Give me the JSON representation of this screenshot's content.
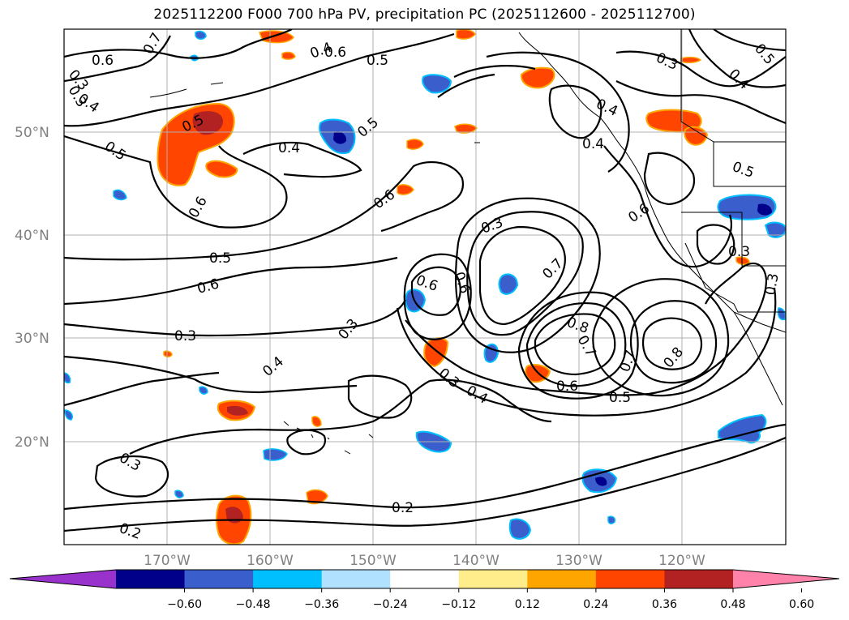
{
  "title": "2025112200 F000 700 hPa PV, precipitation PC (2025112600 - 2025112700)",
  "map": {
    "lon_labels": [
      "170°W",
      "160°W",
      "150°W",
      "140°W",
      "130°W",
      "120°W"
    ],
    "lat_labels": [
      "50°N",
      "40°N",
      "30°N",
      "20°N"
    ],
    "contour_labels": [
      "0.7",
      "0.6",
      "0.3",
      "0.4",
      "0.5",
      "0.6",
      "0.5",
      "0.4",
      "0.5",
      "0.5",
      "0.4",
      "0.3",
      "0.5",
      "0.4",
      "0.6",
      "0.4",
      "0.5",
      "0.6",
      "0.6",
      "0.3",
      "0.6",
      "0.3",
      "0.5",
      "0.6",
      "0.4",
      "0.7",
      "0.3",
      "0.3",
      "0.4",
      "0.6",
      "0.8",
      "0.7",
      "0.7",
      "0.8",
      "0.3",
      "0.4",
      "0.3",
      "0.6",
      "0.5",
      "0.3",
      "0.2",
      "0.2",
      "0.3"
    ]
  },
  "colorbar": {
    "ticks": [
      "−0.60",
      "−0.48",
      "−0.36",
      "−0.24",
      "−0.12",
      "0.12",
      "0.24",
      "0.36",
      "0.48",
      "0.60"
    ],
    "colors": [
      "#9932cc",
      "#00008b",
      "#3a5fcd",
      "#00bfff",
      "#b0e2ff",
      "#ffffff",
      "#ffec8b",
      "#ffa500",
      "#ff4500",
      "#b22222",
      "#ff82ab"
    ]
  }
}
